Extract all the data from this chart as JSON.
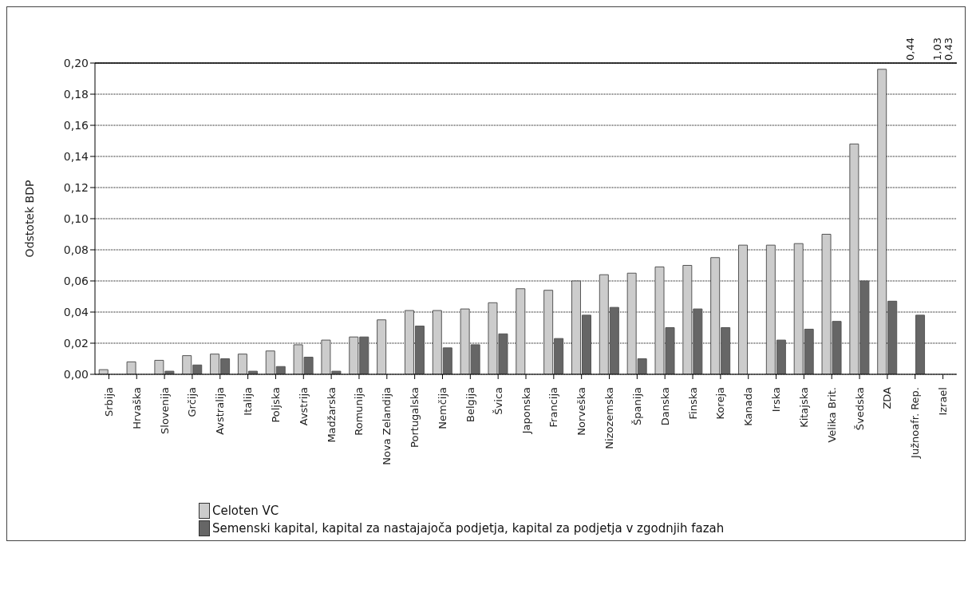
{
  "chart_data": {
    "type": "bar",
    "ylabel": "Odstotek BDP",
    "categories": [
      "Srbija",
      "Hrvaška",
      "Slovenija",
      "Grčija",
      "Avstralija",
      "Italija",
      "Poljska",
      "Avstrija",
      "Madžarska",
      "Romunija",
      "Nova Zelandija",
      "Portugalska",
      "Nemčija",
      "Belgija",
      "Švica",
      "Japonska",
      "Francija",
      "Norveška",
      "Nizozemska",
      "Španija",
      "Danska",
      "Finska",
      "Koreja",
      "Kanada",
      "Irska",
      "Kitajska",
      "Velika Brit.",
      "Švedska",
      "ZDA",
      "Južnoafr. Rep.",
      "Izrael"
    ],
    "series": [
      {
        "name": "Celoten VC",
        "color": "#cccccc",
        "values": [
          0.003,
          0.008,
          0.009,
          0.012,
          0.013,
          0.013,
          0.015,
          0.019,
          0.022,
          0.024,
          0.035,
          0.041,
          0.041,
          0.042,
          0.046,
          0.055,
          0.054,
          0.06,
          0.064,
          0.065,
          0.069,
          0.07,
          0.075,
          0.083,
          0.083,
          0.084,
          0.09,
          0.148,
          0.196,
          null,
          null
        ],
        "value_labels": [
          null,
          null,
          null,
          null,
          null,
          null,
          null,
          null,
          null,
          null,
          null,
          null,
          null,
          null,
          null,
          null,
          null,
          null,
          null,
          null,
          null,
          null,
          null,
          null,
          null,
          null,
          null,
          null,
          null,
          "0,44",
          "1,03"
        ]
      },
      {
        "name": "Semenski kapital, kapital za nastajajoča podjetja, kapital za podjetja v zgodnjih fazah",
        "color": "#666666",
        "values": [
          null,
          null,
          0.002,
          0.006,
          0.01,
          0.002,
          0.005,
          0.011,
          0.002,
          0.024,
          null,
          0.031,
          0.017,
          0.019,
          0.026,
          null,
          0.023,
          0.038,
          0.043,
          0.01,
          0.03,
          0.042,
          0.03,
          null,
          0.022,
          0.029,
          0.034,
          0.06,
          0.047,
          0.038,
          null
        ],
        "value_labels": [
          null,
          null,
          null,
          null,
          null,
          null,
          null,
          null,
          null,
          null,
          null,
          null,
          null,
          null,
          null,
          null,
          null,
          null,
          null,
          null,
          null,
          null,
          null,
          null,
          null,
          null,
          null,
          null,
          null,
          null,
          "0,43"
        ]
      }
    ],
    "ylim": [
      0,
      0.2
    ],
    "yticks": [
      {
        "value": 0,
        "label": "0,00"
      },
      {
        "value": 0.02,
        "label": "0,02"
      },
      {
        "value": 0.04,
        "label": "0,04"
      },
      {
        "value": 0.06,
        "label": "0,06"
      },
      {
        "value": 0.08,
        "label": "0,08"
      },
      {
        "value": 0.1,
        "label": "0,10"
      },
      {
        "value": 0.12,
        "label": "0,12"
      },
      {
        "value": 0.14,
        "label": "0,14"
      },
      {
        "value": 0.16,
        "label": "0,16"
      },
      {
        "value": 0.18,
        "label": "0,18"
      },
      {
        "value": 0.2,
        "label": "0,20"
      }
    ],
    "grid": "y",
    "legend": "bottom"
  }
}
